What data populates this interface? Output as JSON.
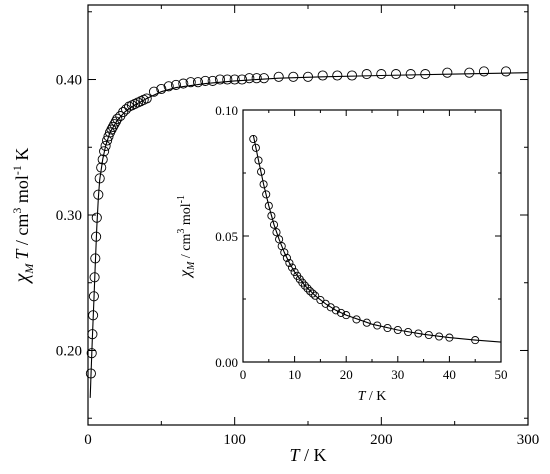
{
  "chart_data": [
    {
      "type": "scatter",
      "panel": "main",
      "xlabel": {
        "italic": "T",
        "rest": " / K"
      },
      "ylabel": {
        "symbol": "χ",
        "sub": "M",
        "italic": "T",
        "unit": " / cm",
        "sup1": "3",
        "mid": " mol",
        "sup2": "-1",
        "end": " K"
      },
      "xlim": [
        0,
        300
      ],
      "ylim": [
        0.145,
        0.455
      ],
      "xticks": [
        0,
        100,
        200,
        300
      ],
      "yticks": [
        0.2,
        0.3,
        0.4
      ],
      "xtick_labels": [
        "0",
        "100",
        "200",
        "300"
      ],
      "ytick_labels": [
        "0.20",
        "0.30",
        "0.40"
      ],
      "grid": false,
      "series": [
        {
          "marker": "open-circle",
          "x": [
            2,
            2.5,
            3,
            3.5,
            4,
            4.5,
            5,
            5.5,
            6,
            7,
            8,
            9,
            10,
            11,
            12,
            13,
            14,
            15,
            16,
            17,
            18,
            19,
            20,
            22,
            24,
            26,
            28,
            30,
            32,
            34,
            36,
            38,
            40,
            45,
            50,
            55,
            60,
            65,
            70,
            75,
            80,
            85,
            90,
            95,
            100,
            105,
            110,
            115,
            120,
            130,
            140,
            150,
            160,
            170,
            180,
            190,
            200,
            210,
            220,
            230,
            245,
            260,
            270,
            285
          ],
          "y": [
            0.183,
            0.198,
            0.212,
            0.226,
            0.24,
            0.254,
            0.268,
            0.284,
            0.298,
            0.315,
            0.327,
            0.335,
            0.341,
            0.347,
            0.351,
            0.355,
            0.358,
            0.361,
            0.363,
            0.365,
            0.367,
            0.369,
            0.371,
            0.373,
            0.376,
            0.378,
            0.38,
            0.381,
            0.382,
            0.383,
            0.384,
            0.385,
            0.386,
            0.391,
            0.393,
            0.395,
            0.396,
            0.397,
            0.398,
            0.398,
            0.399,
            0.399,
            0.4,
            0.4,
            0.4,
            0.4,
            0.401,
            0.401,
            0.401,
            0.402,
            0.402,
            0.402,
            0.403,
            0.403,
            0.403,
            0.404,
            0.404,
            0.404,
            0.404,
            0.404,
            0.405,
            0.405,
            0.406,
            0.406
          ]
        },
        {
          "line": "solid-fit",
          "x": [
            1.5,
            2,
            3,
            4,
            5,
            6,
            7,
            8,
            10,
            12,
            15,
            20,
            25,
            30,
            40,
            50,
            60,
            80,
            100,
            130,
            160,
            200,
            250,
            300
          ],
          "y": [
            0.165,
            0.18,
            0.21,
            0.237,
            0.264,
            0.291,
            0.312,
            0.326,
            0.341,
            0.351,
            0.361,
            0.37,
            0.376,
            0.38,
            0.386,
            0.391,
            0.394,
            0.397,
            0.399,
            0.401,
            0.402,
            0.403,
            0.404,
            0.405
          ]
        }
      ]
    },
    {
      "type": "scatter",
      "panel": "inset",
      "xlabel": {
        "italic": "T",
        "rest": " / K"
      },
      "ylabel": {
        "symbol": "χ",
        "sub": "M",
        "unit": " / cm",
        "sup1": "3",
        "mid": " mol",
        "sup2": "-1"
      },
      "xlim": [
        0,
        50
      ],
      "ylim": [
        0,
        0.1
      ],
      "xticks": [
        0,
        10,
        20,
        30,
        40,
        50
      ],
      "yticks": [
        0,
        0.05,
        0.1
      ],
      "xtick_labels": [
        "0",
        "10",
        "20",
        "30",
        "40",
        "50"
      ],
      "ytick_labels": [
        "0.00",
        "0.05",
        "0.10"
      ],
      "grid": false,
      "series": [
        {
          "marker": "open-circle",
          "x": [
            2,
            2.5,
            3,
            3.5,
            4,
            4.5,
            5,
            5.5,
            6,
            6.5,
            7,
            7.5,
            8,
            8.5,
            9,
            9.5,
            10,
            10.5,
            11,
            11.5,
            12,
            12.5,
            13,
            13.5,
            14,
            15,
            16,
            17,
            18,
            19,
            20,
            22,
            24,
            26,
            28,
            30,
            32,
            34,
            36,
            38,
            40,
            45
          ],
          "y": [
            0.0885,
            0.085,
            0.08,
            0.0755,
            0.0705,
            0.0665,
            0.062,
            0.058,
            0.0545,
            0.0515,
            0.0487,
            0.046,
            0.0435,
            0.0413,
            0.0393,
            0.0375,
            0.0357,
            0.0342,
            0.0328,
            0.0315,
            0.0303,
            0.0292,
            0.0281,
            0.0272,
            0.0263,
            0.0246,
            0.0231,
            0.0217,
            0.0205,
            0.0195,
            0.0186,
            0.0169,
            0.0156,
            0.0145,
            0.0135,
            0.0127,
            0.0119,
            0.0113,
            0.0107,
            0.0101,
            0.0097,
            0.0087
          ]
        },
        {
          "line": "solid-fit",
          "x": [
            2,
            3,
            4,
            5,
            6,
            7,
            8,
            9,
            10,
            12,
            14,
            16,
            18,
            20,
            25,
            30,
            35,
            40,
            45,
            50
          ],
          "y": [
            0.09,
            0.08,
            0.0705,
            0.062,
            0.0545,
            0.0487,
            0.0435,
            0.0393,
            0.0357,
            0.0303,
            0.0263,
            0.0231,
            0.0205,
            0.0186,
            0.015,
            0.0127,
            0.011,
            0.0097,
            0.0087,
            0.0079
          ]
        }
      ]
    }
  ]
}
